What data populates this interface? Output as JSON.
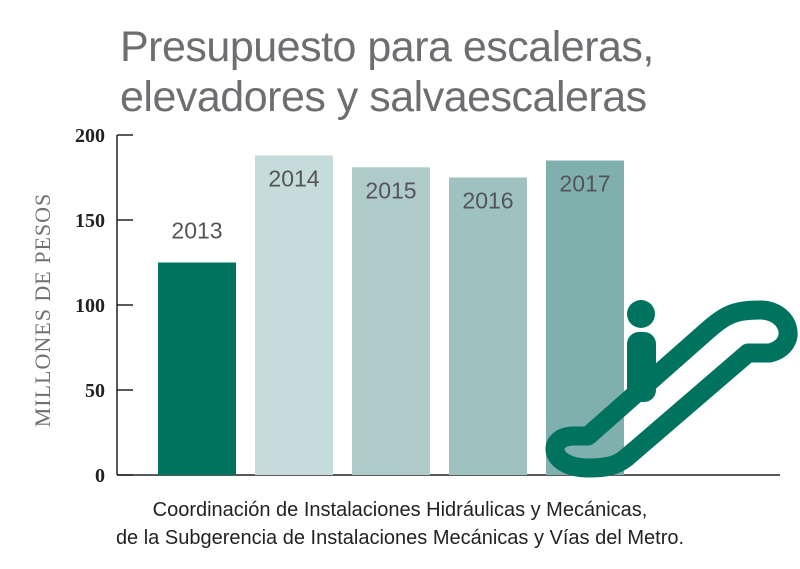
{
  "chart_data": {
    "type": "bar",
    "title_lines": [
      "Presupuesto para escaleras,",
      "elevadores y salvaescaleras"
    ],
    "ylabel": "MILLONES DE PESOS",
    "xlabel": "",
    "categories": [
      "2013",
      "2014",
      "2015",
      "2016",
      "2017"
    ],
    "values": [
      125,
      188,
      181,
      175,
      185
    ],
    "bar_colors": [
      "#00735f",
      "#c6dcda",
      "#aecbca",
      "#9dc2c0",
      "#7fb0ad"
    ],
    "ylim": [
      0,
      200
    ],
    "yticks": [
      0,
      50,
      100,
      150,
      200
    ],
    "ytick_labels": [
      "0",
      "50",
      "100",
      "150",
      "200"
    ],
    "grid": false,
    "legend": "none"
  },
  "decoration": {
    "icon": "escalator-icon",
    "color": "#00735f"
  },
  "source_lines": [
    "Coordinación de Instalaciones Hidráulicas y Mecánicas,",
    "de la Subgerencia de Instalaciones Mecánicas y Vías del Metro."
  ],
  "colors": {
    "axis": "#222222",
    "title": "#6d6e71",
    "label": "#555555"
  }
}
